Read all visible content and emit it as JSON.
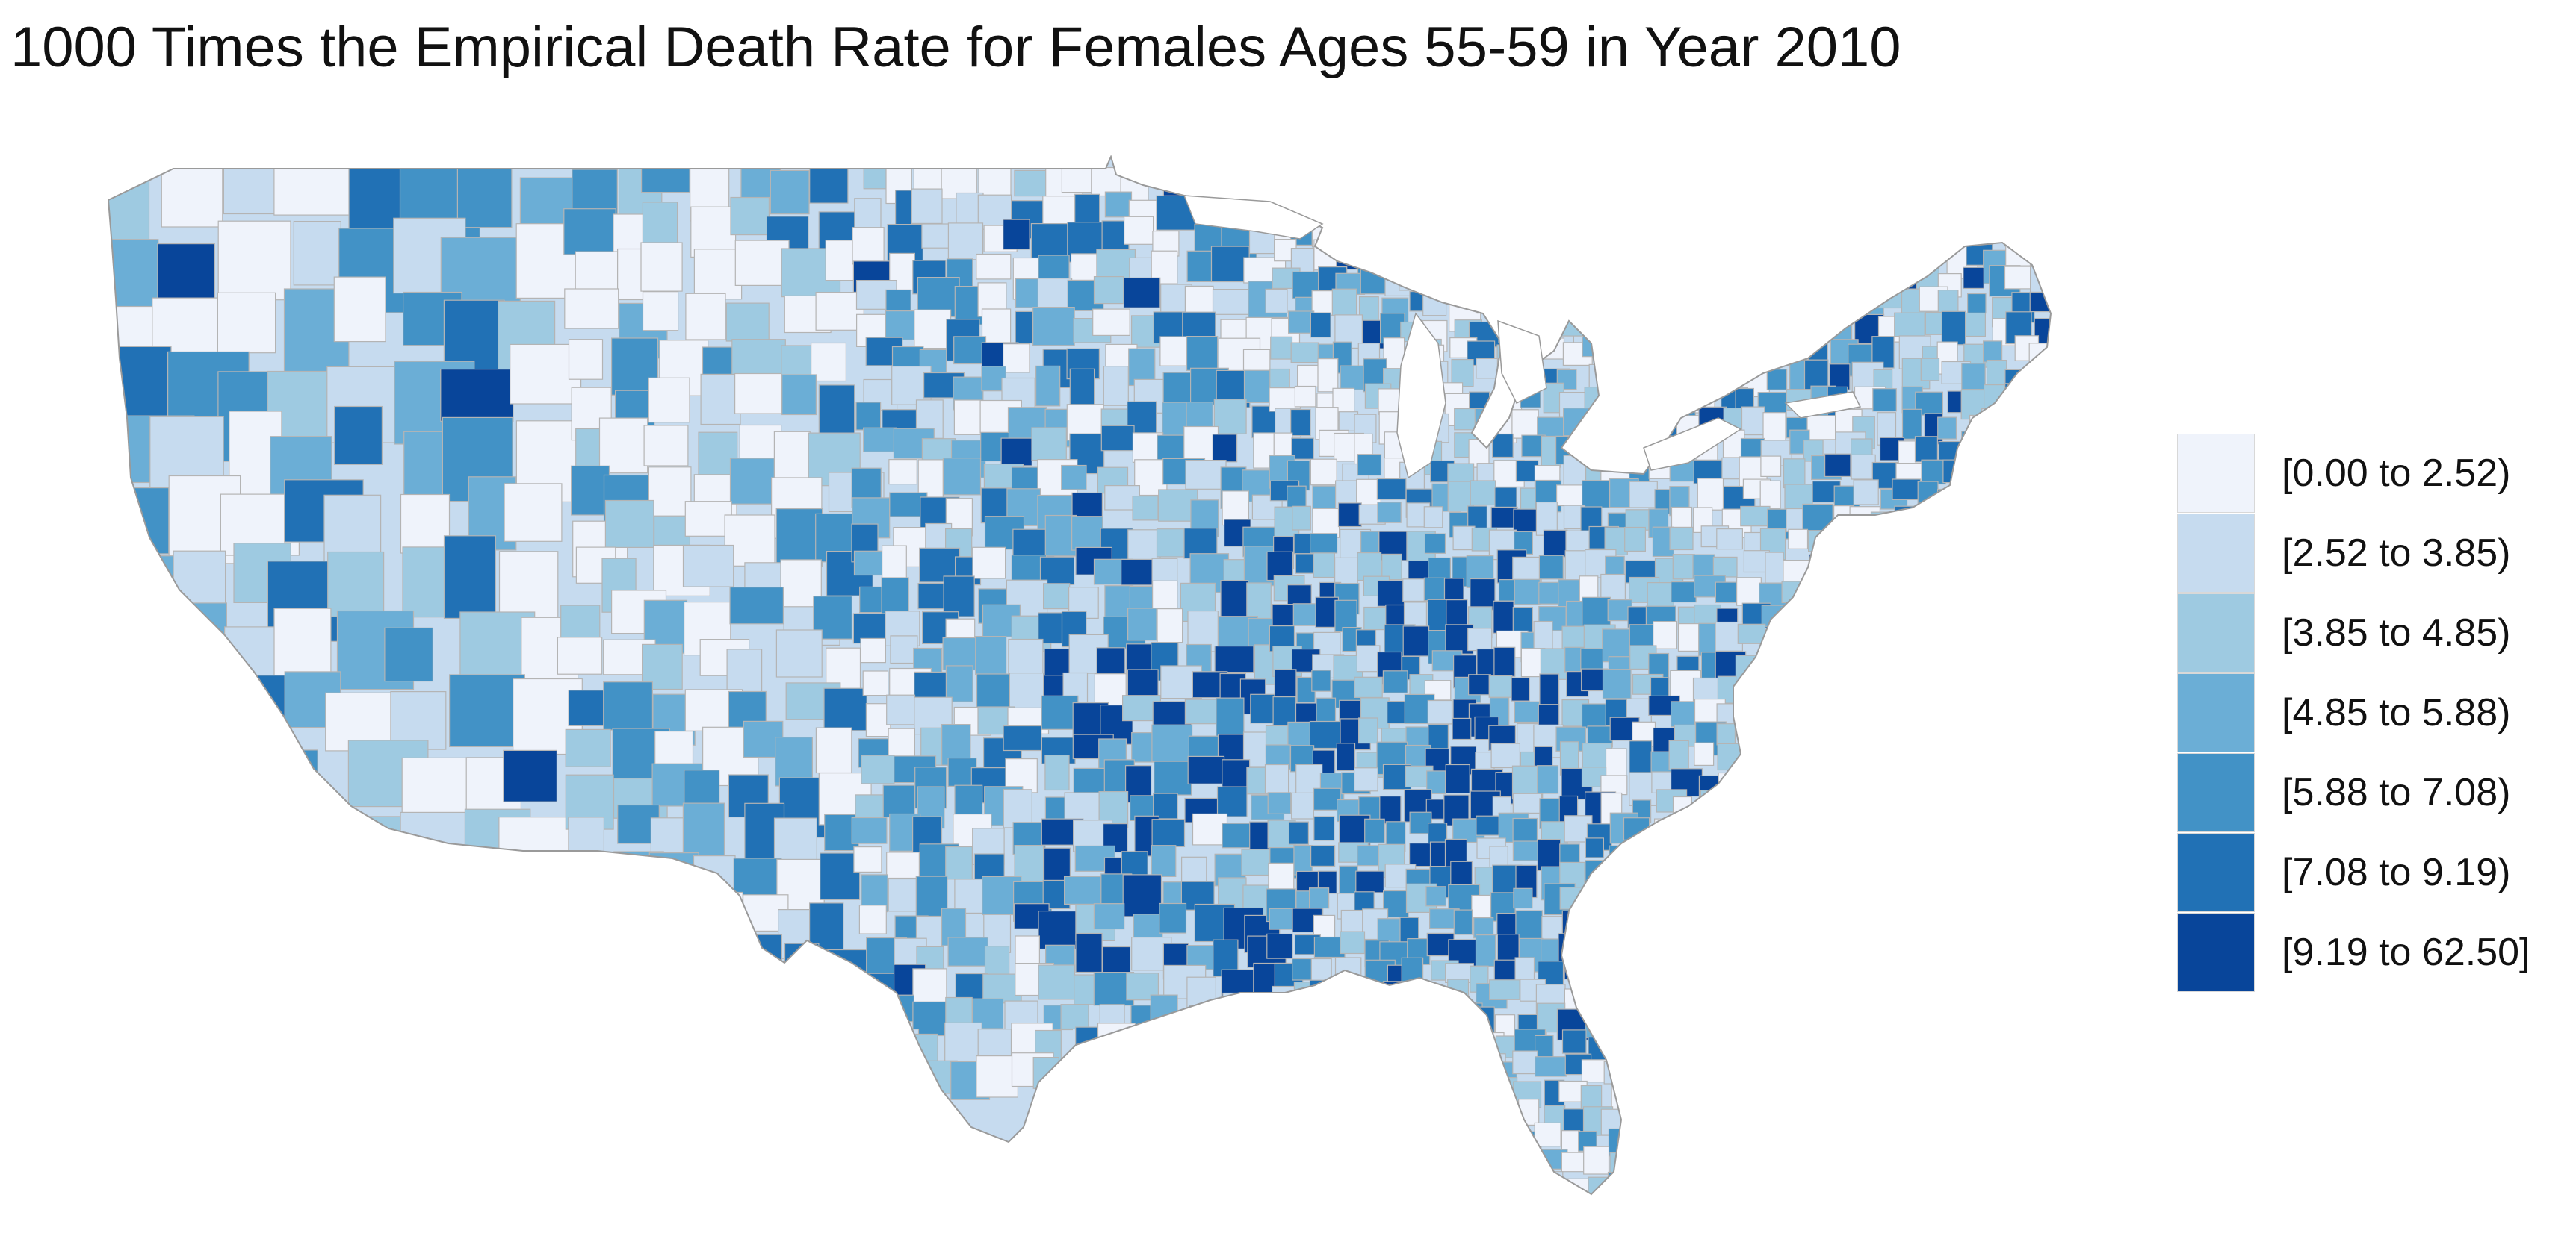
{
  "title": "1000 Times the Empirical Death Rate for Females Ages 55-59 in Year 2010",
  "legend": {
    "bins": [
      {
        "label": "[0.00 to 2.52)",
        "color": "#eff3fb"
      },
      {
        "label": "[2.52 to 3.85)",
        "color": "#c6dbef"
      },
      {
        "label": "[3.85 to 4.85)",
        "color": "#9ecae1"
      },
      {
        "label": "[4.85 to 5.88)",
        "color": "#6baed6"
      },
      {
        "label": "[5.88 to 7.08)",
        "color": "#4292c6"
      },
      {
        "label": "[7.08 to 9.19)",
        "color": "#2171b5"
      },
      {
        "label": "[9.19 to 62.50]",
        "color": "#08459a"
      }
    ]
  },
  "map": {
    "region": "contiguous-united-states",
    "unit": "county",
    "border_color": "#b4b4b4",
    "background": "#ffffff"
  }
}
